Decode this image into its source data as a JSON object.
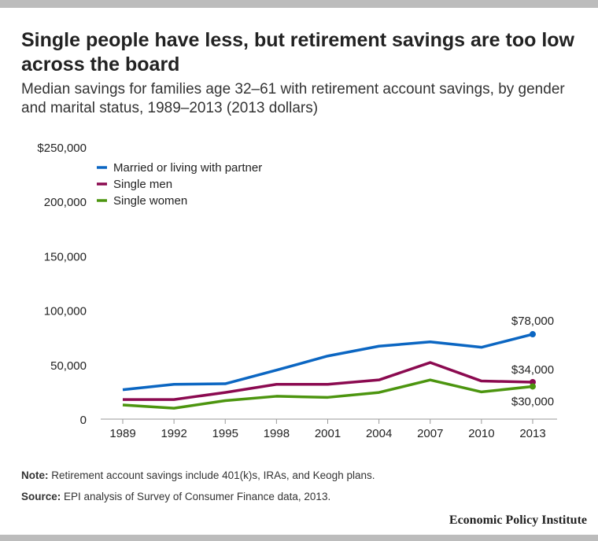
{
  "title": "Single people have less, but retirement savings are too low across the board",
  "subtitle": "Median savings for families age 32–61 with retirement account savings, by gender and marital status, 1989–2013 (2013 dollars)",
  "note_label": "Note:",
  "note_text": " Retirement account savings include 401(k)s, IRAs, and Keogh plans.",
  "source_label": "Source:",
  "source_text": " EPI analysis of  Survey of Consumer Finance data, 2013.",
  "brand": "Economic Policy Institute",
  "chart_data": {
    "type": "line",
    "title": "",
    "xlabel": "",
    "ylabel": "",
    "ylim": [
      0,
      250000
    ],
    "yticks": [
      0,
      50000,
      100000,
      150000,
      200000,
      250000
    ],
    "ytick_labels": [
      "0",
      "50,000",
      "100,000",
      "150,000",
      "200,000",
      "$250,000"
    ],
    "grid": false,
    "legend": "top-left",
    "categories": [
      "1989",
      "1992",
      "1995",
      "1998",
      "2001",
      "2004",
      "2007",
      "2010",
      "2013"
    ],
    "series": [
      {
        "name": "Married or living with partner",
        "color": "#0b66c2",
        "values": [
          27000,
          32000,
          32500,
          45000,
          58000,
          67000,
          71000,
          66000,
          78000
        ],
        "end_label": "$78,000"
      },
      {
        "name": "Single men",
        "color": "#8b0a50",
        "values": [
          18000,
          18000,
          24500,
          32000,
          32000,
          36000,
          52000,
          35000,
          34000
        ],
        "end_label": "$34,000"
      },
      {
        "name": "Single women",
        "color": "#4c950f",
        "values": [
          13000,
          10000,
          17000,
          21000,
          20000,
          24500,
          36000,
          25000,
          30000
        ],
        "end_label": "$30,000"
      }
    ]
  }
}
